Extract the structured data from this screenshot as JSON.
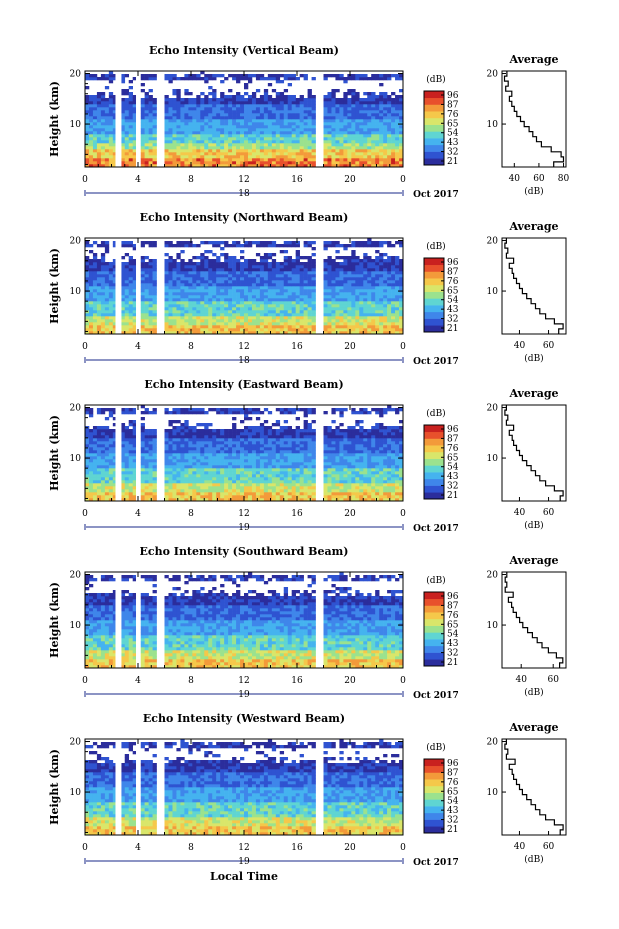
{
  "figure": {
    "x_axis_label": "Local Time",
    "date_label": "Oct 2017",
    "colorbar_unit": "(dB)",
    "colorbar_ticks": [
      "96",
      "87",
      "76",
      "65",
      "54",
      "43",
      "32",
      "21"
    ],
    "colors": {
      "scale": [
        "#2b2d9c",
        "#2f53d1",
        "#3f86ea",
        "#45b3ef",
        "#5fd5d2",
        "#9be28e",
        "#d9e66a",
        "#f5c84a",
        "#f39a3a",
        "#e8502c",
        "#c9211f"
      ],
      "line": "#000000",
      "gap": "#ffffff"
    }
  },
  "chart_data": [
    {
      "type": "heatmap",
      "title": "Echo Intensity (Vertical Beam)",
      "ylabel": "Height (km)",
      "y_ticks": [
        "20",
        "10"
      ],
      "x_ticks": [
        "0",
        "4",
        "8",
        "12",
        "16",
        "20",
        "0"
      ],
      "day_label": "18",
      "profile": {
        "title": "Average",
        "xlabel": "(dB)",
        "x_ticks": [
          "40",
          "60",
          "80"
        ],
        "y_ticks": [
          "20",
          "10"
        ],
        "xlim": [
          30,
          82
        ],
        "ylim": [
          1.5,
          20.5
        ],
        "height": [
          2,
          3,
          4,
          5,
          6,
          7,
          8,
          9,
          10,
          11,
          12,
          13,
          14,
          15,
          16,
          17,
          18,
          19,
          20
        ],
        "db": [
          72,
          80,
          78,
          70,
          62,
          58,
          55,
          52,
          48,
          45,
          42,
          40,
          38,
          36,
          38,
          33,
          35,
          32,
          34
        ]
      }
    },
    {
      "type": "heatmap",
      "title": "Echo Intensity (Northward Beam)",
      "ylabel": "Height (km)",
      "y_ticks": [
        "20",
        "10"
      ],
      "x_ticks": [
        "0",
        "4",
        "8",
        "12",
        "16",
        "20",
        "0"
      ],
      "day_label": "18",
      "profile": {
        "title": "Average",
        "xlabel": "(dB)",
        "x_ticks": [
          "40",
          "60"
        ],
        "y_ticks": [
          "20",
          "10"
        ],
        "xlim": [
          28,
          72
        ],
        "ylim": [
          1.5,
          20.5
        ],
        "height": [
          2,
          3,
          4,
          5,
          6,
          7,
          8,
          9,
          10,
          11,
          12,
          13,
          14,
          15,
          16,
          17,
          18,
          19,
          20
        ],
        "db": [
          67,
          70,
          64,
          58,
          54,
          51,
          48,
          45,
          42,
          40,
          38,
          36,
          35,
          33,
          36,
          31,
          32,
          30,
          31
        ]
      }
    },
    {
      "type": "heatmap",
      "title": "Echo Intensity (Eastward Beam)",
      "ylabel": "Height (km)",
      "y_ticks": [
        "20",
        "10"
      ],
      "x_ticks": [
        "0",
        "4",
        "8",
        "12",
        "16",
        "20",
        "0"
      ],
      "day_label": "19",
      "profile": {
        "title": "Average",
        "xlabel": "(dB)",
        "x_ticks": [
          "40",
          "60"
        ],
        "y_ticks": [
          "20",
          "10"
        ],
        "xlim": [
          28,
          72
        ],
        "ylim": [
          1.5,
          20.5
        ],
        "height": [
          2,
          3,
          4,
          5,
          6,
          7,
          8,
          9,
          10,
          11,
          12,
          13,
          14,
          15,
          16,
          17,
          18,
          19,
          20
        ],
        "db": [
          68,
          70,
          64,
          58,
          54,
          51,
          48,
          45,
          42,
          40,
          38,
          36,
          35,
          33,
          36,
          31,
          32,
          30,
          31
        ]
      }
    },
    {
      "type": "heatmap",
      "title": "Echo Intensity (Southward Beam)",
      "ylabel": "Height (km)",
      "y_ticks": [
        "20",
        "10"
      ],
      "x_ticks": [
        "0",
        "4",
        "8",
        "12",
        "16",
        "20",
        "0"
      ],
      "day_label": "19",
      "profile": {
        "title": "Average",
        "xlabel": "(dB)",
        "x_ticks": [
          "40",
          "60"
        ],
        "y_ticks": [
          "20",
          "10"
        ],
        "xlim": [
          28,
          68
        ],
        "ylim": [
          1.5,
          20.5
        ],
        "height": [
          2,
          3,
          4,
          5,
          6,
          7,
          8,
          9,
          10,
          11,
          12,
          13,
          14,
          15,
          16,
          17,
          18,
          19,
          20
        ],
        "db": [
          64,
          66,
          62,
          57,
          53,
          50,
          47,
          44,
          41,
          39,
          37,
          35,
          34,
          32,
          35,
          30,
          31,
          30,
          31
        ]
      }
    },
    {
      "type": "heatmap",
      "title": "Echo Intensity (Westward Beam)",
      "ylabel": "Height (km)",
      "y_ticks": [
        "20",
        "10"
      ],
      "x_ticks": [
        "0",
        "4",
        "8",
        "12",
        "16",
        "20",
        "0"
      ],
      "day_label": "19",
      "profile": {
        "title": "Average",
        "xlabel": "(dB)",
        "x_ticks": [
          "40",
          "60"
        ],
        "y_ticks": [
          "20",
          "10"
        ],
        "xlim": [
          28,
          72
        ],
        "ylim": [
          1.5,
          20.5
        ],
        "height": [
          2,
          3,
          4,
          5,
          6,
          7,
          8,
          9,
          10,
          11,
          12,
          13,
          14,
          15,
          16,
          17,
          18,
          19,
          20
        ],
        "db": [
          68,
          70,
          64,
          58,
          54,
          51,
          48,
          45,
          42,
          40,
          38,
          36,
          35,
          33,
          37,
          31,
          32,
          30,
          31
        ]
      }
    }
  ]
}
